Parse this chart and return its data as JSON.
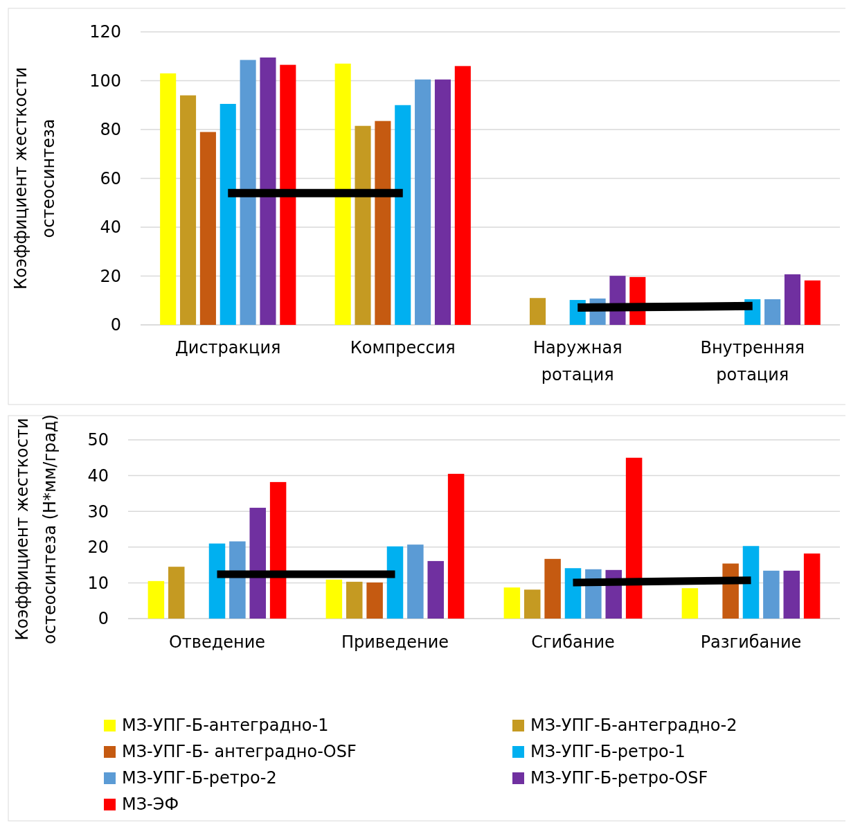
{
  "chart_data": [
    {
      "type": "bar",
      "ylabel": "Коэффициент жесткости остеосинтеза",
      "categories": [
        "Дистракция",
        "Компрессия",
        "Наружная ротация",
        "Внутренняя ротация"
      ],
      "ylim": [
        0,
        120
      ],
      "yticks": [
        0,
        20,
        40,
        60,
        80,
        100,
        120
      ],
      "grid": "y",
      "legend": false,
      "series": [
        {
          "color": "#ffff00",
          "values": [
            103,
            107,
            null,
            null
          ]
        },
        {
          "color": "#c59a22",
          "values": [
            94,
            81.5,
            11,
            null
          ]
        },
        {
          "color": "#c55a11",
          "values": [
            79,
            83.5,
            null,
            null
          ]
        },
        {
          "color": "#00b0f0",
          "values": [
            90.5,
            90,
            10.2,
            10.5
          ]
        },
        {
          "color": "#5b9bd5",
          "values": [
            108.5,
            100.5,
            10.8,
            10.5
          ]
        },
        {
          "color": "#7030a0",
          "values": [
            109.5,
            100.5,
            20.1,
            20.7
          ]
        },
        {
          "color": "#ff0000",
          "values": [
            106.5,
            106,
            19.6,
            18.2
          ]
        },
        {
          "type": "line",
          "color": "#000000",
          "values": [
            54,
            54,
            null,
            null
          ]
        },
        {
          "type": "line",
          "color": "#000000",
          "values": [
            null,
            null,
            7.1,
            7.7
          ]
        }
      ]
    },
    {
      "type": "bar",
      "ylabel": "Коэффициент жесткости остеосинтеза (Н*мм/град)",
      "categories": [
        "Отведение",
        "Приведение",
        "Сгибание",
        "Разгибание"
      ],
      "ylim": [
        0,
        50
      ],
      "yticks": [
        0,
        10,
        20,
        30,
        40,
        50
      ],
      "grid": "y",
      "legend": "bottom",
      "series": [
        {
          "name": "МЗ-УПГ-Б-антеградно-1",
          "color": "#ffff00",
          "values": [
            10.5,
            10.9,
            8.7,
            8.5
          ]
        },
        {
          "name": "МЗ-УПГ-Б-антеградно-2",
          "color": "#c59a22",
          "values": [
            14.5,
            10.3,
            8.1,
            null
          ]
        },
        {
          "name": "МЗ-УПГ-Б- антеградно-OSF",
          "color": "#c55a11",
          "values": [
            null,
            10.1,
            16.7,
            15.4
          ]
        },
        {
          "name": "МЗ-УПГ-Б-ретро-1",
          "color": "#00b0f0",
          "values": [
            21,
            20.2,
            14.1,
            20.3
          ]
        },
        {
          "name": "МЗ-УПГ-Б-ретро-2",
          "color": "#5b9bd5",
          "values": [
            21.6,
            20.7,
            13.8,
            13.4
          ]
        },
        {
          "name": "МЗ-УПГ-Б-ретро-OSF",
          "color": "#7030a0",
          "values": [
            31,
            16.1,
            13.6,
            13.4
          ]
        },
        {
          "name": "МЗ-ЭФ",
          "color": "#ff0000",
          "values": [
            38.2,
            40.5,
            45,
            18.2
          ]
        },
        {
          "type": "line",
          "color": "#000000",
          "values": [
            12.4,
            12.4,
            null,
            null
          ]
        },
        {
          "type": "line",
          "color": "#000000",
          "values": [
            null,
            null,
            10.1,
            10.7
          ]
        }
      ]
    }
  ]
}
